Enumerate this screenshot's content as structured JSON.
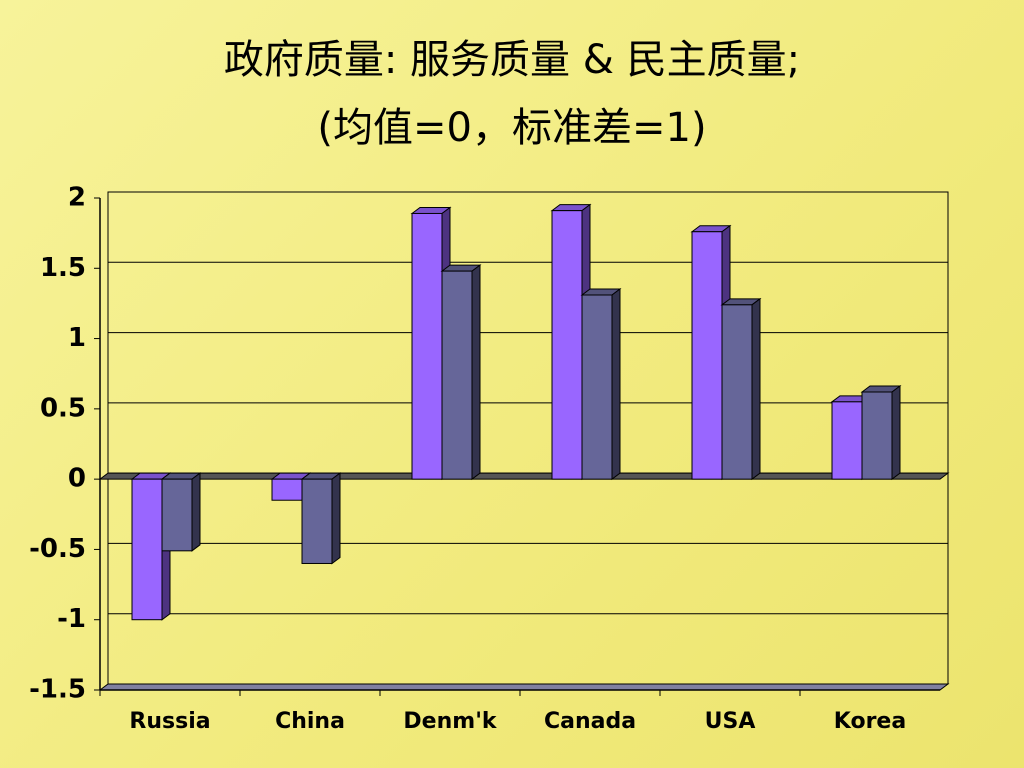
{
  "chart_data": {
    "type": "bar3d",
    "title": [
      "政府质量: 服务质量 & 民主质量;",
      "(均值=0，标准差=1)"
    ],
    "categories": [
      "Russia",
      "China",
      "Denm'k",
      "Canada",
      "USA",
      "Korea"
    ],
    "series": [
      {
        "color": "#9966ff",
        "values": [
          -1.0,
          -0.15,
          1.89,
          1.91,
          1.76,
          0.55
        ]
      },
      {
        "color": "#666699",
        "values": [
          -0.51,
          -0.6,
          1.48,
          1.31,
          1.24,
          0.62
        ]
      }
    ],
    "ylim": [
      -1.5,
      2
    ],
    "yticks": [
      2,
      1.5,
      1,
      0.5,
      0,
      -0.5,
      -1,
      -1.5
    ],
    "grid": true
  }
}
